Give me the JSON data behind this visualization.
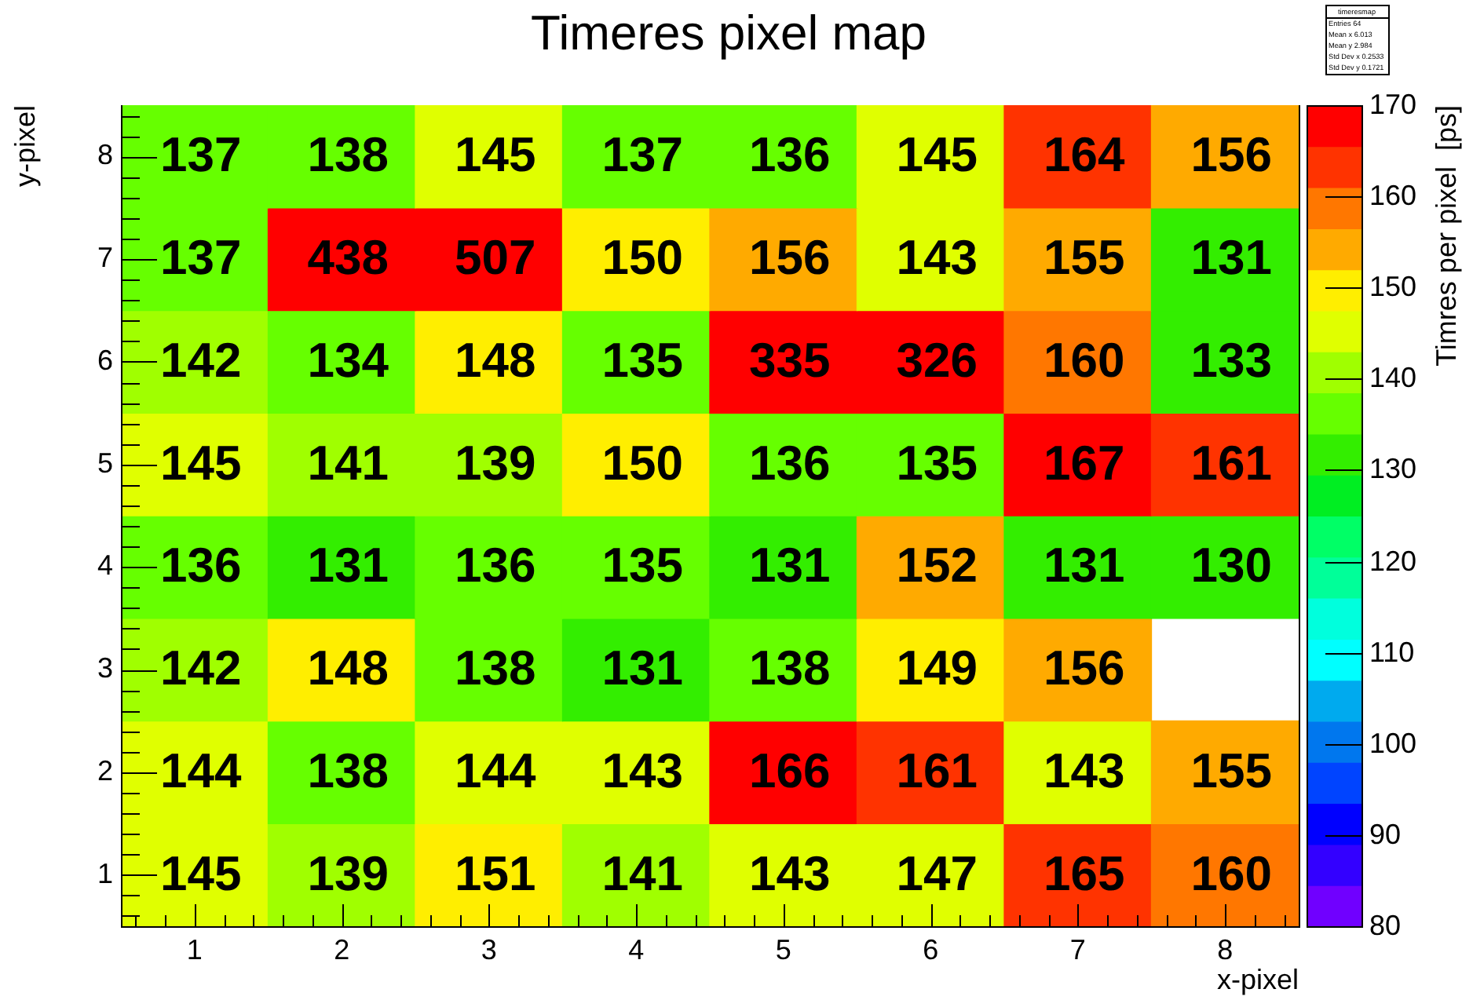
{
  "chart_data": {
    "type": "heatmap",
    "title": "Timeres pixel map",
    "xlabel": "x-pixel",
    "ylabel": "y-pixel",
    "clabel": "Timres per pixel  [ps]",
    "categories": [
      "1",
      "2",
      "3",
      "4",
      "5",
      "6",
      "7",
      "8"
    ],
    "y_categories": [
      "8",
      "7",
      "6",
      "5",
      "4",
      "3",
      "2",
      "1"
    ],
    "cells": [
      [
        137,
        138,
        145,
        137,
        136,
        145,
        164,
        156
      ],
      [
        137,
        438,
        507,
        150,
        156,
        143,
        155,
        131
      ],
      [
        142,
        134,
        148,
        135,
        335,
        326,
        160,
        133
      ],
      [
        145,
        141,
        139,
        150,
        136,
        135,
        167,
        161
      ],
      [
        136,
        131,
        136,
        135,
        131,
        152,
        131,
        130
      ],
      [
        142,
        148,
        138,
        131,
        138,
        149,
        156,
        null
      ],
      [
        144,
        138,
        144,
        143,
        166,
        161,
        143,
        155
      ],
      [
        145,
        139,
        151,
        141,
        143,
        147,
        165,
        160
      ]
    ],
    "clim": [
      80,
      170
    ],
    "cticks": [
      80,
      90,
      100,
      110,
      120,
      130,
      140,
      150,
      160,
      170
    ],
    "data_labels": true,
    "annotations": [
      "timeresmap",
      "Entries 64",
      "Mean x 6.013",
      "Mean y 2.984",
      "Std Dev x 0.2533",
      "Std Dev y 0.1721"
    ]
  }
}
